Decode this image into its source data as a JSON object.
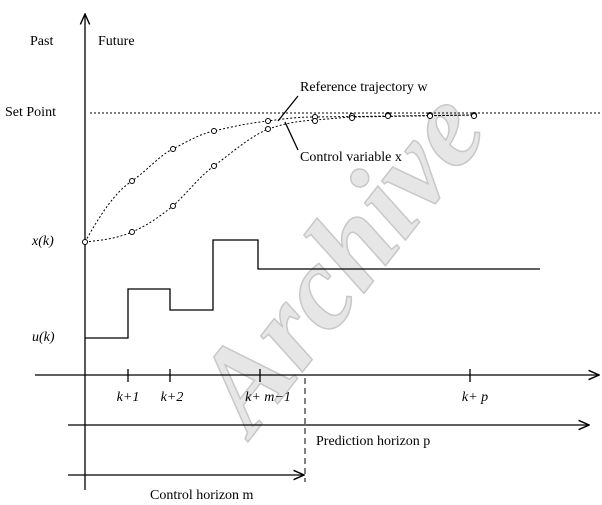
{
  "labels": {
    "past": "Past",
    "future": "Future",
    "set_point": "Set Point",
    "reference": "Reference trajectory w",
    "control_variable": "Control variable x",
    "x_k": "x(k)",
    "u_k": "u(k)"
  },
  "ticks": [
    "k+1",
    "k+2",
    "k+ m−1",
    "k+ p"
  ],
  "horizons": {
    "prediction": "Prediction horizon p",
    "control": "Control horizon m"
  },
  "watermark": "Archive"
}
